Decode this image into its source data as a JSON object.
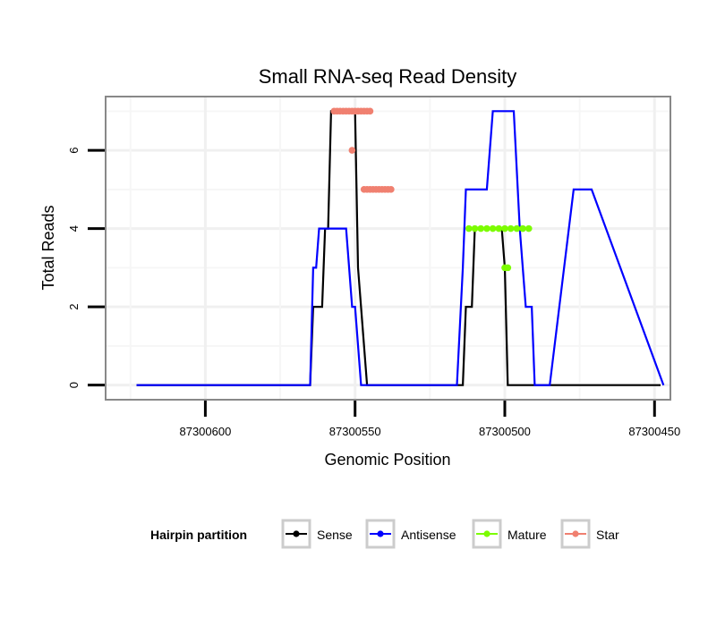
{
  "chart_data": {
    "type": "line",
    "title": "Small RNA-seq Read Density",
    "xlabel": "Genomic Position",
    "ylabel": "Total Reads",
    "x_reversed": true,
    "xlim": [
      87300633,
      87300445
    ],
    "ylim": [
      -0.35,
      7.35
    ],
    "x_ticks": [
      87300600,
      87300550,
      87300500,
      87300450
    ],
    "x_tick_labels": [
      "87300600",
      "87300550",
      "87300500",
      "87300450"
    ],
    "y_ticks": [
      0,
      2,
      4,
      6
    ],
    "y_tick_labels": [
      "0",
      "2",
      "4",
      "6"
    ],
    "grid": true,
    "legend": {
      "title": "Hairpin partition",
      "position": "bottom",
      "entries": [
        {
          "name": "Sense",
          "color": "#000000"
        },
        {
          "name": "Antisense",
          "color": "#0000ff"
        },
        {
          "name": "Mature",
          "color": "#7cfc00"
        },
        {
          "name": "Star",
          "color": "#f08070"
        }
      ]
    },
    "series": [
      {
        "name": "Sense",
        "color": "#000000",
        "style": "line",
        "x": [
          87300623,
          87300565,
          87300564,
          87300563,
          87300561,
          87300560,
          87300559,
          87300558,
          87300550,
          87300549,
          87300546,
          87300530,
          87300514,
          87300513,
          87300511,
          87300510,
          87300504,
          87300501,
          87300500,
          87300499,
          87300485,
          87300475,
          87300460,
          87300448
        ],
        "y": [
          0,
          0,
          2,
          2,
          2,
          4,
          4,
          7,
          7,
          3,
          0,
          0,
          0,
          2,
          2,
          4,
          4,
          4,
          3,
          0,
          0,
          0,
          0,
          0
        ]
      },
      {
        "name": "Antisense",
        "color": "#0000ff",
        "style": "line",
        "x": [
          87300623,
          87300565,
          87300564,
          87300563,
          87300562,
          87300553,
          87300551,
          87300550,
          87300548,
          87300530,
          87300516,
          87300514,
          87300513,
          87300506,
          87300504,
          87300497,
          87300495,
          87300493,
          87300491,
          87300490,
          87300485,
          87300477,
          87300471,
          87300447
        ],
        "y": [
          0,
          0,
          3,
          3,
          4,
          4,
          2,
          2,
          0,
          0,
          0,
          3,
          5,
          5,
          7,
          7,
          4,
          2,
          2,
          0,
          0,
          5,
          5,
          0
        ]
      },
      {
        "name": "Mature",
        "color": "#7cfc00",
        "style": "points",
        "x": [
          87300512,
          87300510,
          87300508,
          87300506,
          87300504,
          87300502,
          87300500,
          87300498,
          87300496,
          87300494,
          87300492,
          87300500,
          87300499
        ],
        "y": [
          4,
          4,
          4,
          4,
          4,
          4,
          4,
          4,
          4,
          4,
          4,
          3,
          3
        ]
      },
      {
        "name": "Star",
        "color": "#f08070",
        "style": "points",
        "x": [
          87300557,
          87300556,
          87300555,
          87300554,
          87300553,
          87300552,
          87300551,
          87300550,
          87300549,
          87300548,
          87300547,
          87300546,
          87300545,
          87300551,
          87300547,
          87300546,
          87300545,
          87300544,
          87300543,
          87300542,
          87300541,
          87300540,
          87300539,
          87300538
        ],
        "y": [
          7,
          7,
          7,
          7,
          7,
          7,
          7,
          7,
          7,
          7,
          7,
          7,
          7,
          6,
          5,
          5,
          5,
          5,
          5,
          5,
          5,
          5,
          5,
          5
        ]
      }
    ]
  }
}
